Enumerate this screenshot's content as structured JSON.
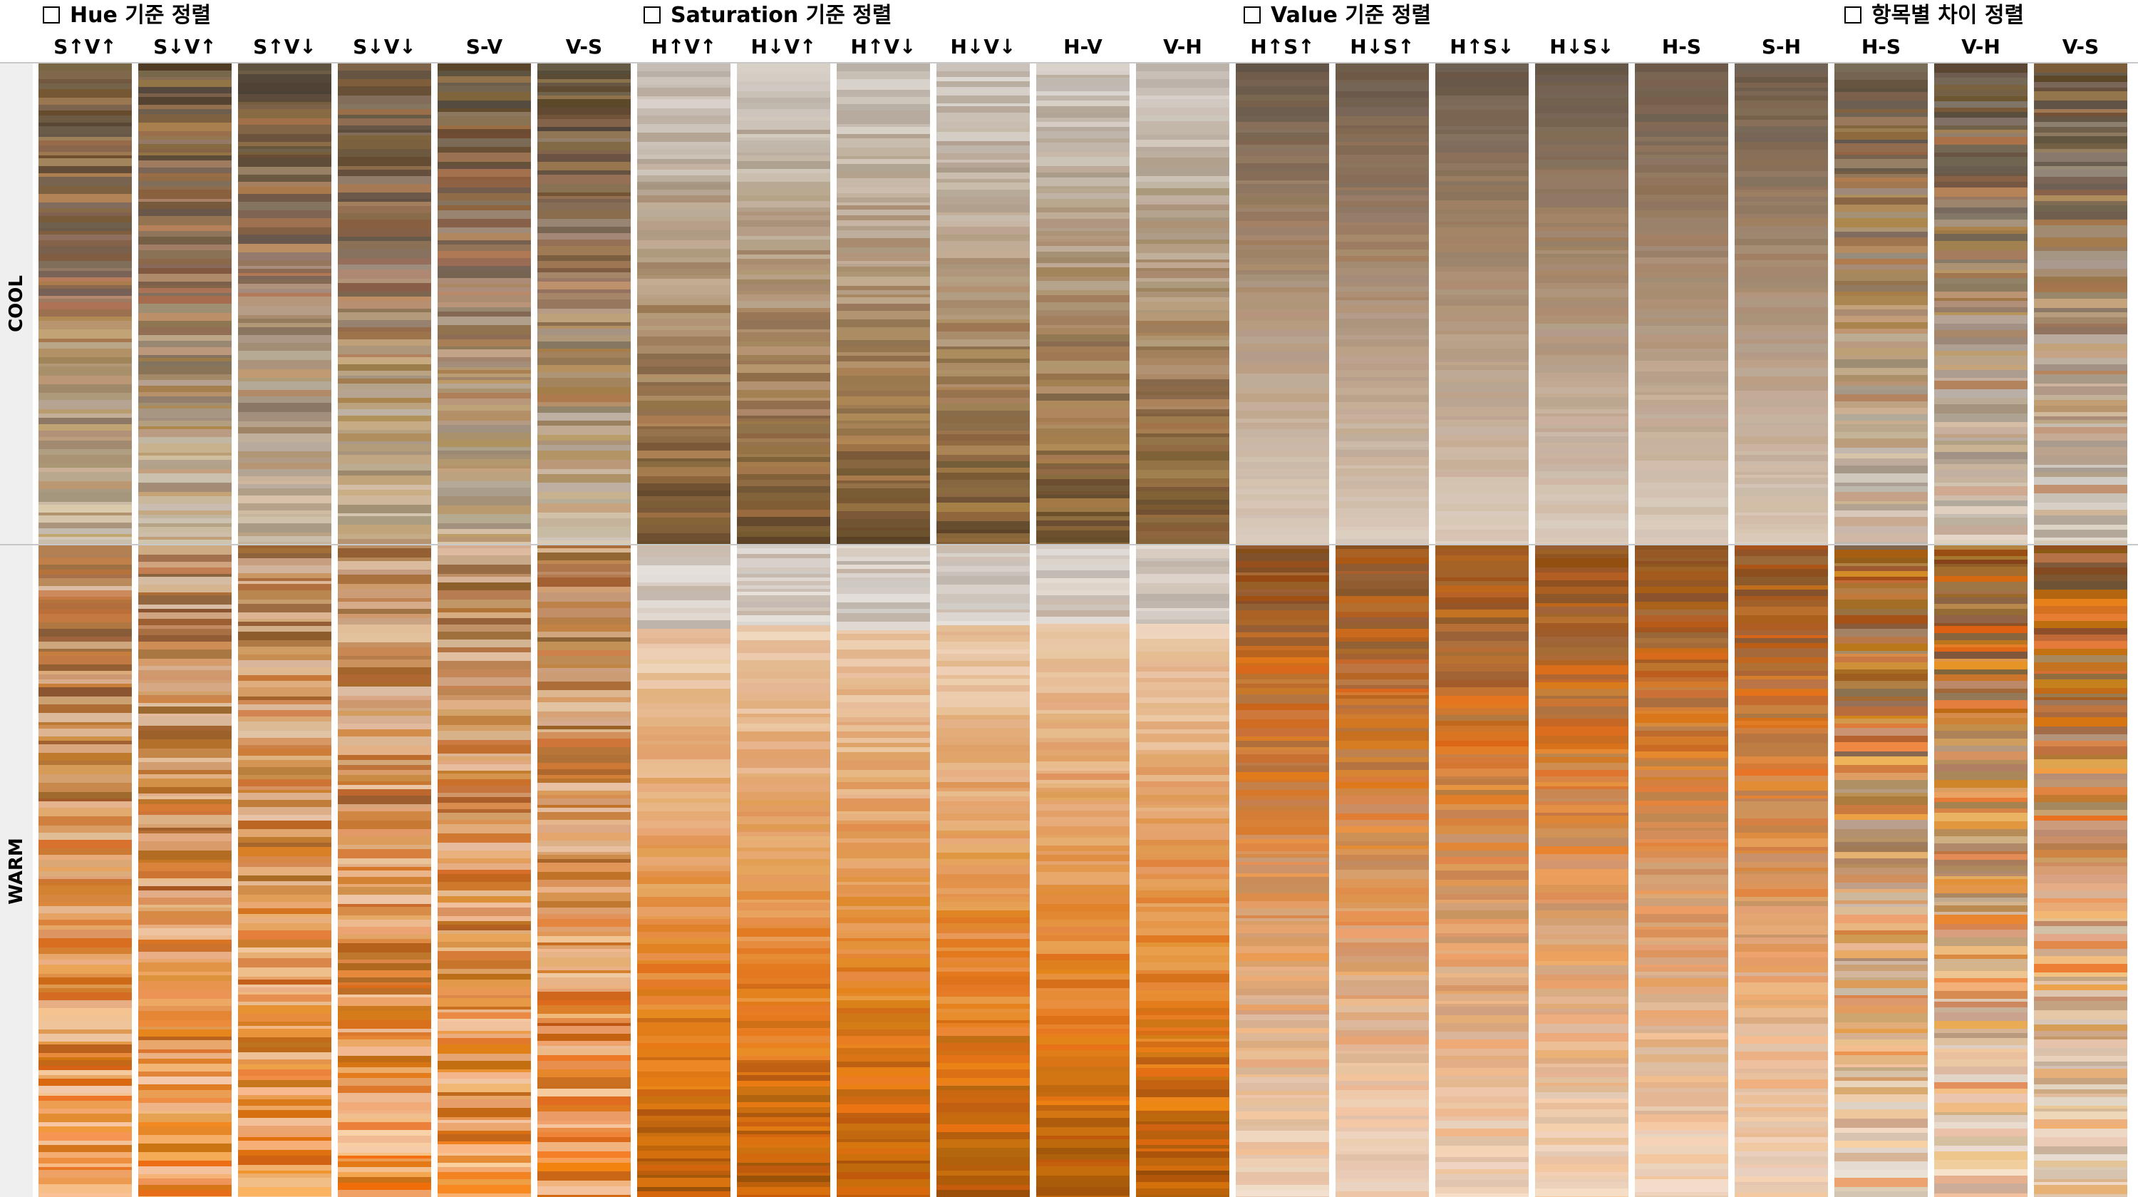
{
  "groups": [
    {
      "title": "Hue 기준 정렬",
      "columns": [
        "S↑V↑",
        "S↓V↑",
        "S↑V↓",
        "S↓V↓",
        "S-V",
        "V-S"
      ]
    },
    {
      "title": "Saturation 기준 정렬",
      "columns": [
        "H↑V↑",
        "H↓V↑",
        "H↑V↓",
        "H↓V↓",
        "H-V",
        "V-H"
      ]
    },
    {
      "title": "Value 기준 정렬",
      "columns": [
        "H↑S↑",
        "H↓S↑",
        "H↑S↓",
        "H↓S↓",
        "H-S",
        "S-H"
      ]
    },
    {
      "title": "항목별 차이 정렬",
      "columns": [
        "H-S",
        "V-H",
        "V-S"
      ]
    }
  ],
  "rows": [
    "COOL",
    "WARM"
  ],
  "palette": {
    "dark_brown": "#6b5344",
    "mid_brown": "#a07a5c",
    "light_beige": "#e6d3c2",
    "cream": "#f6ead9",
    "grey_taupe": "#9c9188",
    "orange_light": "#f4b483",
    "rust": "#8a5129"
  }
}
